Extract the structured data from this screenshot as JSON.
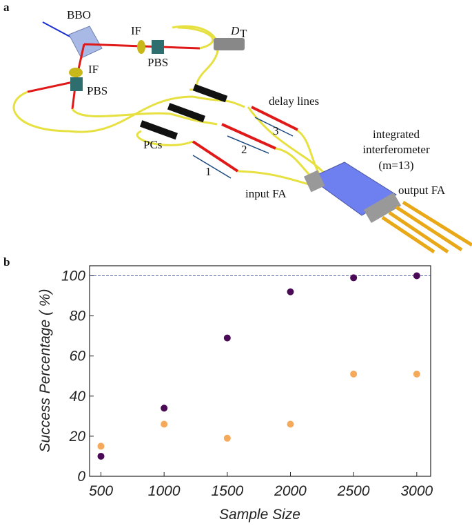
{
  "panels": {
    "a": "a",
    "b": "b"
  },
  "diagram": {
    "labels": [
      "BBO",
      "IF",
      "PBS",
      "IF",
      "PBS",
      "D",
      "T",
      "delay lines",
      "integrated",
      "interferometer",
      "(m=13)",
      "PCs",
      "1",
      "2",
      "3",
      "input FA",
      "output FA"
    ]
  },
  "chart_data": {
    "type": "scatter",
    "x": [
      500,
      1000,
      1500,
      2000,
      2500,
      3000
    ],
    "series": [
      {
        "color": "#4b0a55",
        "values": [
          10,
          34,
          69,
          92,
          99,
          100
        ]
      },
      {
        "color": "#f5a95a",
        "values": [
          15,
          26,
          19,
          26,
          51,
          51
        ]
      }
    ],
    "x_label": "Sample Size",
    "y_label": "Success Percentage ( %)",
    "xlim": [
      410,
      3110
    ],
    "ylim": [
      0,
      105
    ],
    "xticks": [
      500,
      1000,
      1500,
      2000,
      2500,
      3000
    ],
    "yticks": [
      0,
      20,
      40,
      60,
      80,
      100
    ],
    "reference_line": 100,
    "grid": false
  }
}
